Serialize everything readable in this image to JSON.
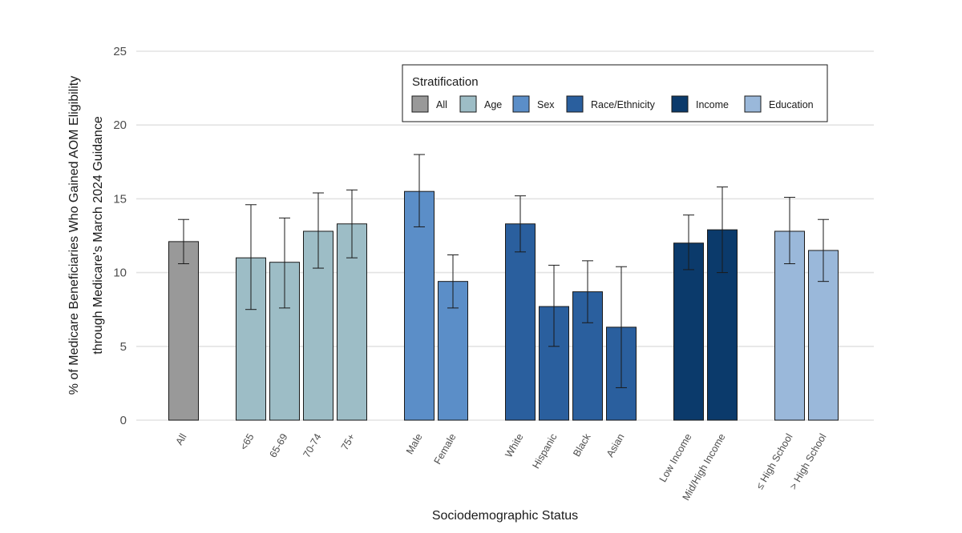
{
  "chart_data": {
    "type": "bar",
    "title": "",
    "xlabel": "Sociodemographic Status",
    "ylabel_line1": "% of Medicare Beneficiaries Who Gained AOM Eligibility",
    "ylabel_line2": "through Medicare's March 2024 Guidance",
    "ylim": [
      0,
      25
    ],
    "yticks": [
      0,
      5,
      10,
      15,
      20,
      25
    ],
    "grid": true,
    "legend": {
      "title": "Stratification",
      "position": "top-right",
      "entries": [
        {
          "name": "All",
          "color": "#999999"
        },
        {
          "name": "Age",
          "color": "#9dbdc6"
        },
        {
          "name": "Sex",
          "color": "#5b8ec8"
        },
        {
          "name": "Race/Ethnicity",
          "color": "#2a5f9e"
        },
        {
          "name": "Income",
          "color": "#0b3a6b"
        },
        {
          "name": "Education",
          "color": "#9ab8da"
        }
      ]
    },
    "bars": [
      {
        "category": "All",
        "group": "All",
        "value": 12.1,
        "ci_low": 10.6,
        "ci_high": 13.6
      },
      {
        "category": "<65",
        "group": "Age",
        "value": 11.0,
        "ci_low": 7.5,
        "ci_high": 14.6
      },
      {
        "category": "65-69",
        "group": "Age",
        "value": 10.7,
        "ci_low": 7.6,
        "ci_high": 13.7
      },
      {
        "category": "70-74",
        "group": "Age",
        "value": 12.8,
        "ci_low": 10.3,
        "ci_high": 15.4
      },
      {
        "category": "75+",
        "group": "Age",
        "value": 13.3,
        "ci_low": 11.0,
        "ci_high": 15.6
      },
      {
        "category": "Male",
        "group": "Sex",
        "value": 15.5,
        "ci_low": 13.1,
        "ci_high": 18.0
      },
      {
        "category": "Female",
        "group": "Sex",
        "value": 9.4,
        "ci_low": 7.6,
        "ci_high": 11.2
      },
      {
        "category": "White",
        "group": "Race/Ethnicity",
        "value": 13.3,
        "ci_low": 11.4,
        "ci_high": 15.2
      },
      {
        "category": "Hispanic",
        "group": "Race/Ethnicity",
        "value": 7.7,
        "ci_low": 5.0,
        "ci_high": 10.5
      },
      {
        "category": "Black",
        "group": "Race/Ethnicity",
        "value": 8.7,
        "ci_low": 6.6,
        "ci_high": 10.8
      },
      {
        "category": "Asian",
        "group": "Race/Ethnicity",
        "value": 6.3,
        "ci_low": 2.2,
        "ci_high": 10.4
      },
      {
        "category": "Low Income",
        "group": "Income",
        "value": 12.0,
        "ci_low": 10.2,
        "ci_high": 13.9
      },
      {
        "category": "Mid/High Income",
        "group": "Income",
        "value": 12.9,
        "ci_low": 10.0,
        "ci_high": 15.8
      },
      {
        "category": "≤ High School",
        "group": "Education",
        "value": 12.8,
        "ci_low": 10.6,
        "ci_high": 15.1
      },
      {
        "category": "> High School",
        "group": "Education",
        "value": 11.5,
        "ci_low": 9.4,
        "ci_high": 13.6
      }
    ]
  }
}
